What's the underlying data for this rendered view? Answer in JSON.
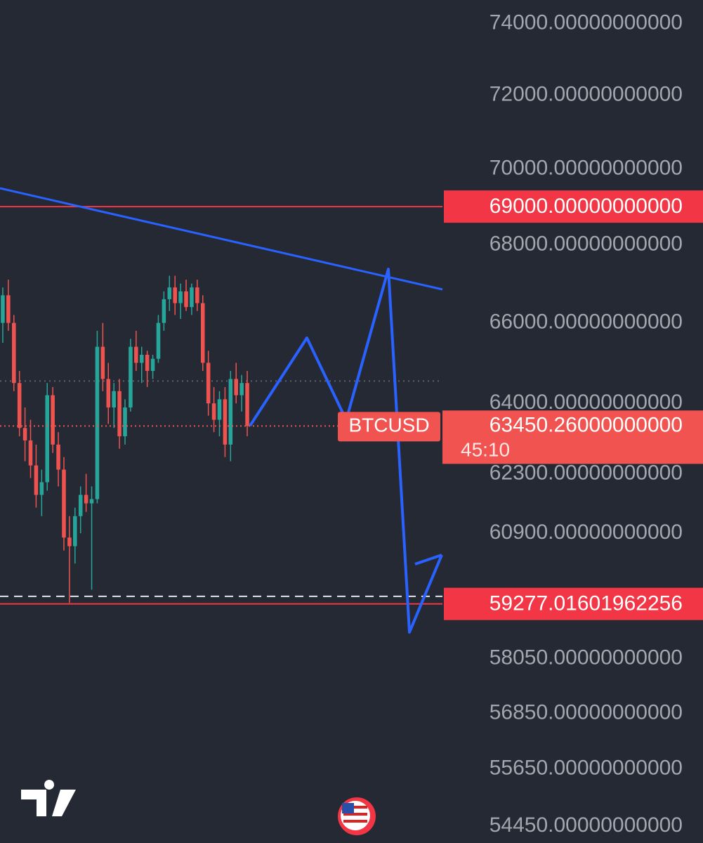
{
  "chart_data": {
    "type": "candlestick",
    "log_scale": true,
    "ylim": [
      74670,
      54100
    ],
    "yticks": [
      {
        "value": 74000,
        "label": "74000.00000000000"
      },
      {
        "value": 72000,
        "label": "72000.00000000000"
      },
      {
        "value": 70000,
        "label": "70000.00000000000"
      },
      {
        "value": 68000,
        "label": "68000.00000000000"
      },
      {
        "value": 66000,
        "label": "66000.00000000000"
      },
      {
        "value": 64000,
        "label": "64000.00000000000"
      },
      {
        "value": 62300,
        "label": "62300.00000000000"
      },
      {
        "value": 60900,
        "label": "60900.00000000000"
      },
      {
        "value": 58050,
        "label": "58050.00000000000"
      },
      {
        "value": 56850,
        "label": "56850.00000000000"
      },
      {
        "value": 55650,
        "label": "55650.00000000000"
      },
      {
        "value": 54450,
        "label": "54450.00000000000"
      }
    ],
    "up_color": "#26a69a",
    "down_color": "#ef5350",
    "open": [
      66000,
      66700,
      66000,
      64500,
      63400,
      63100,
      62500,
      61800,
      62100,
      64200,
      63000,
      62400,
      60800,
      60600,
      61300,
      61800,
      61600,
      61700,
      65400,
      64600,
      63900,
      64300,
      63200,
      63900,
      65400,
      65000,
      65200,
      64800,
      65100,
      66000,
      66600,
      66900,
      66500,
      66800,
      66400,
      66900,
      66500,
      65000,
      64000,
      63600,
      64100,
      63000,
      64600,
      64200,
      64500
    ],
    "high": [
      66900,
      67100,
      66200,
      64800,
      63900,
      63600,
      63000,
      62400,
      64500,
      64400,
      63300,
      62700,
      61300,
      61500,
      62000,
      62300,
      62000,
      65800,
      66000,
      65000,
      64500,
      64600,
      64100,
      65600,
      65800,
      65400,
      65300,
      65200,
      66200,
      66800,
      67200,
      67200,
      67000,
      67100,
      67000,
      67100,
      66700,
      65300,
      64400,
      64300,
      64400,
      64800,
      65000,
      64700,
      64800
    ],
    "low": [
      65500,
      65800,
      64300,
      63200,
      62600,
      62200,
      61500,
      61300,
      61900,
      62800,
      62000,
      60500,
      59300,
      60200,
      60900,
      61400,
      59600,
      61600,
      64300,
      63500,
      63400,
      62900,
      63000,
      63800,
      64800,
      64500,
      64400,
      64600,
      65000,
      65800,
      66300,
      66200,
      66100,
      66300,
      66200,
      66300,
      64800,
      63700,
      63300,
      63200,
      62700,
      62600,
      64000,
      63800,
      63200
    ],
    "close": [
      66700,
      66000,
      64500,
      63400,
      63100,
      62500,
      61800,
      62100,
      64200,
      63000,
      62400,
      60800,
      60600,
      61300,
      61800,
      61600,
      61700,
      65400,
      64600,
      63900,
      64300,
      63200,
      63900,
      65400,
      65000,
      65200,
      64800,
      65100,
      66000,
      66600,
      66900,
      66500,
      66800,
      66400,
      66900,
      66500,
      65000,
      64000,
      63600,
      64100,
      63000,
      64600,
      64200,
      64500,
      63450.26
    ],
    "reference_lines": [
      64550,
      59450
    ],
    "price_lines": [
      {
        "value": 69000,
        "label": "69000.00000000000",
        "color": "#f23645"
      },
      {
        "value": 59277.01601962256,
        "label": "59277.01601962256",
        "color": "#f23645"
      }
    ],
    "last_price": {
      "symbol": "BTCUSD",
      "value": 63450.26,
      "label": "63450.26000000000",
      "countdown": "45:10",
      "color": "#f05350"
    }
  }
}
